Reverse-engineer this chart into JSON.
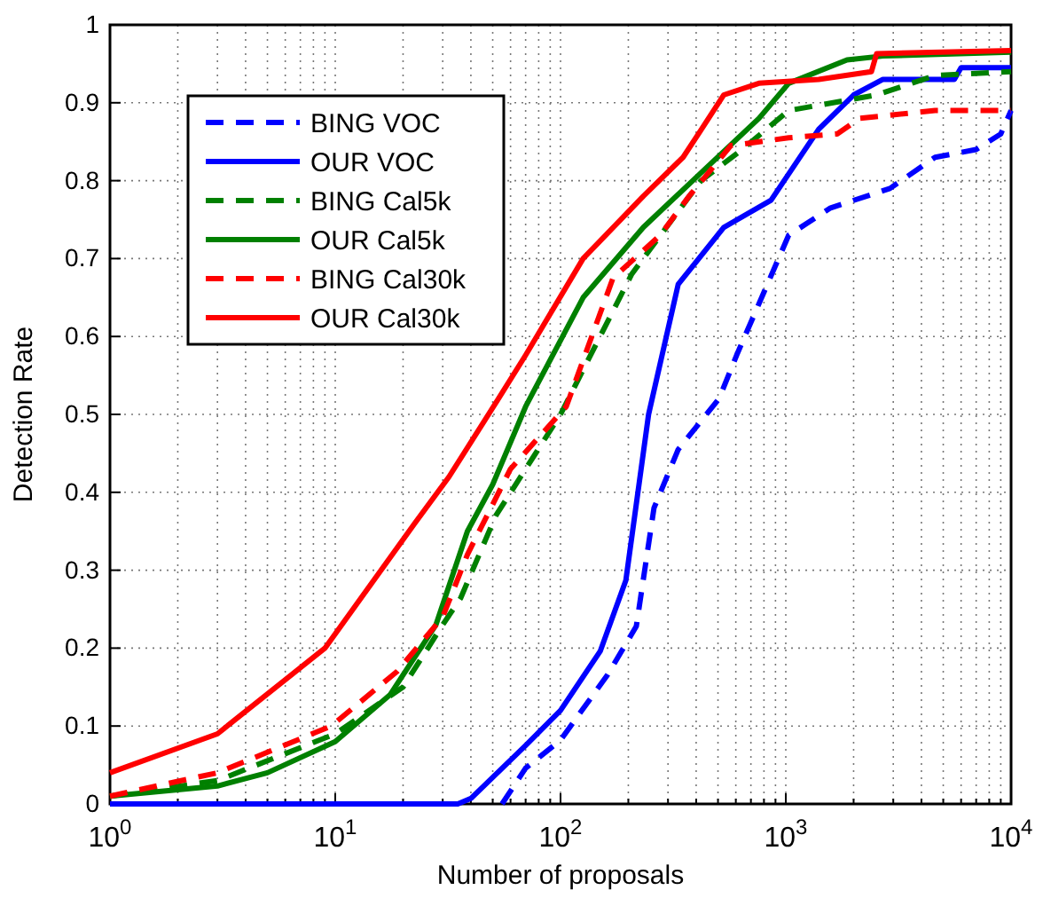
{
  "chart_data": {
    "type": "line",
    "xlabel": "Number of proposals",
    "ylabel": "Detection Rate",
    "log": "x",
    "grid": true,
    "legend": "top left",
    "marker": "none",
    "xlim": [
      1,
      10000
    ],
    "ylim": [
      0,
      1
    ],
    "xticks": [
      {
        "value": 1,
        "label": "10$^{0}$"
      },
      {
        "value": 2,
        "label": null
      },
      {
        "value": 3,
        "label": null
      },
      {
        "value": 4,
        "label": null
      },
      {
        "value": 5,
        "label": null
      },
      {
        "value": 6,
        "label": null
      },
      {
        "value": 7,
        "label": null
      },
      {
        "value": 8,
        "label": null
      },
      {
        "value": 9,
        "label": null
      },
      {
        "value": 10,
        "label": "10$^{1}$"
      },
      {
        "value": 20,
        "label": null
      },
      {
        "value": 30,
        "label": null
      },
      {
        "value": 40,
        "label": null
      },
      {
        "value": 50,
        "label": null
      },
      {
        "value": 60,
        "label": null
      },
      {
        "value": 70,
        "label": null
      },
      {
        "value": 80,
        "label": null
      },
      {
        "value": 90,
        "label": null
      },
      {
        "value": 100,
        "label": "10$^{2}$"
      },
      {
        "value": 200,
        "label": null
      },
      {
        "value": 300,
        "label": null
      },
      {
        "value": 400,
        "label": null
      },
      {
        "value": 500,
        "label": null
      },
      {
        "value": 600,
        "label": null
      },
      {
        "value": 700,
        "label": null
      },
      {
        "value": 800,
        "label": null
      },
      {
        "value": 900,
        "label": null
      },
      {
        "value": 1000,
        "label": "10$^{3}$"
      },
      {
        "value": 2000,
        "label": null
      },
      {
        "value": 3000,
        "label": null
      },
      {
        "value": 4000,
        "label": null
      },
      {
        "value": 5000,
        "label": null
      },
      {
        "value": 6000,
        "label": null
      },
      {
        "value": 7000,
        "label": null
      },
      {
        "value": 8000,
        "label": null
      },
      {
        "value": 9000,
        "label": null
      },
      {
        "value": 10000,
        "label": "10$^{4}$"
      }
    ],
    "yticks": [
      0,
      0.1,
      0.2,
      0.3,
      0.4,
      0.5,
      0.6,
      0.7,
      0.8,
      0.9,
      1
    ],
    "series": [
      {
        "name": "BING VOC",
        "color": "#0000ff",
        "line_style": "dashed",
        "x": [
          55,
          70,
          100,
          162,
          217,
          260,
          333,
          505,
          605,
          1030,
          1580,
          2900,
          4600,
          7000,
          9000,
          10000
        ],
        "values": [
          0,
          0.046,
          0.082,
          0.166,
          0.228,
          0.38,
          0.455,
          0.52,
          0.576,
          0.73,
          0.765,
          0.79,
          0.83,
          0.84,
          0.86,
          0.89
        ]
      },
      {
        "name": "OUR VOC",
        "color": "#0000ff",
        "line_style": "solid",
        "x": [
          1,
          35,
          40,
          70,
          100,
          150,
          195,
          246,
          333,
          530,
          860,
          1400,
          2000,
          2700,
          5600,
          6000,
          10000
        ],
        "values": [
          0,
          0,
          0.007,
          0.075,
          0.12,
          0.196,
          0.287,
          0.5,
          0.667,
          0.74,
          0.775,
          0.866,
          0.91,
          0.93,
          0.93,
          0.945,
          0.945
        ]
      },
      {
        "name": "BING Cal5k",
        "color": "#008000",
        "line_style": "dashed",
        "x": [
          1,
          3,
          10,
          20,
          30,
          36,
          51.6,
          100,
          207,
          420,
          640,
          1030,
          2530,
          4600,
          10000
        ],
        "values": [
          0.01,
          0.03,
          0.09,
          0.15,
          0.23,
          0.264,
          0.37,
          0.5,
          0.68,
          0.8,
          0.84,
          0.89,
          0.91,
          0.935,
          0.94
        ]
      },
      {
        "name": "OUR Cal5k",
        "color": "#008000",
        "line_style": "solid",
        "x": [
          1,
          3,
          5,
          10,
          17.5,
          28,
          38.6,
          50,
          70,
          126,
          233,
          420,
          760,
          1030,
          1870,
          2700,
          10000
        ],
        "values": [
          0.01,
          0.023,
          0.04,
          0.08,
          0.14,
          0.23,
          0.35,
          0.41,
          0.51,
          0.65,
          0.74,
          0.81,
          0.88,
          0.925,
          0.955,
          0.96,
          0.965
        ]
      },
      {
        "name": "BING Cal30k",
        "color": "#ff0000",
        "line_style": "dashed",
        "x": [
          1,
          3,
          9.6,
          18.8,
          30,
          38.6,
          60,
          106,
          171,
          277,
          372,
          570,
          1030,
          1690,
          2130,
          4600,
          10000
        ],
        "values": [
          0.01,
          0.04,
          0.1,
          0.17,
          0.24,
          0.32,
          0.43,
          0.51,
          0.675,
          0.73,
          0.78,
          0.845,
          0.855,
          0.86,
          0.88,
          0.89,
          0.89
        ]
      },
      {
        "name": "OUR Cal30k",
        "color": "#ff0000",
        "line_style": "solid",
        "x": [
          1,
          3,
          9,
          22.5,
          32,
          53,
          70,
          126,
          233,
          350,
          420,
          530,
          760,
          1400,
          2400,
          2530,
          10000
        ],
        "values": [
          0.04,
          0.09,
          0.2,
          0.36,
          0.42,
          0.52,
          0.576,
          0.7,
          0.78,
          0.83,
          0.865,
          0.91,
          0.925,
          0.93,
          0.94,
          0.963,
          0.967
        ]
      }
    ]
  }
}
